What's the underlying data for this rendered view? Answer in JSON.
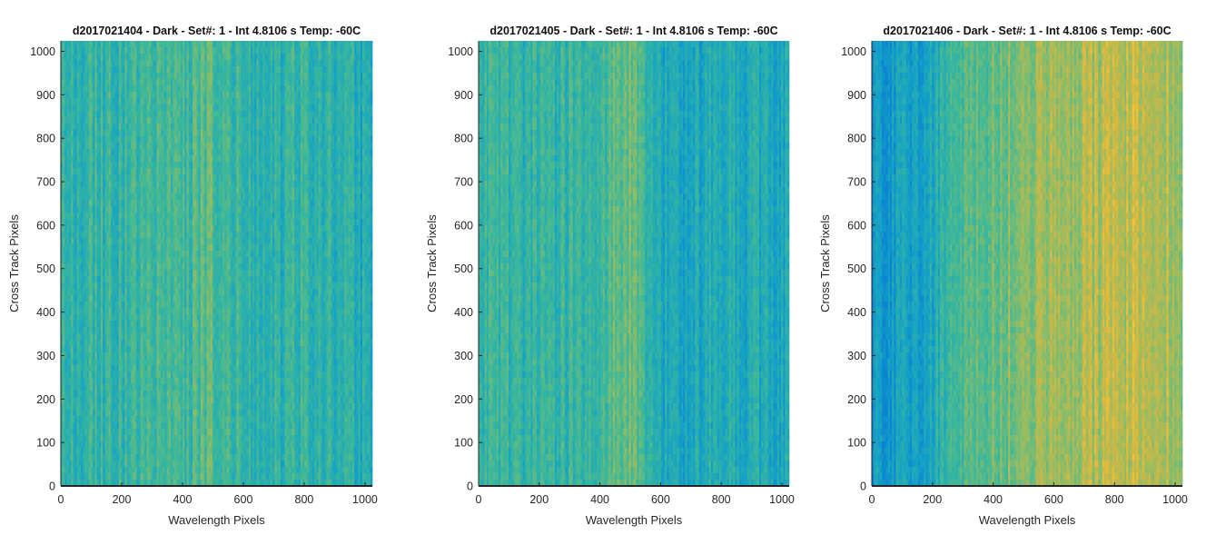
{
  "chart_data": [
    {
      "type": "heatmap",
      "title": "d2017021404 - Dark - Set#: 1 - Int 4.8106 s Temp: -60C",
      "xlabel": "Wavelength Pixels",
      "ylabel": "Cross Track Pixels",
      "xlim": [
        0,
        1024
      ],
      "ylim": [
        0,
        1024
      ],
      "xticks": [
        0,
        200,
        400,
        600,
        800,
        1000
      ],
      "yticks": [
        0,
        100,
        200,
        300,
        400,
        500,
        600,
        700,
        800,
        900,
        1000
      ],
      "colormap": "parula",
      "value_range": [
        0,
        1
      ],
      "column_profile": [
        {
          "x": 0,
          "v": 0.5
        },
        {
          "x": 100,
          "v": 0.52
        },
        {
          "x": 200,
          "v": 0.5
        },
        {
          "x": 300,
          "v": 0.53
        },
        {
          "x": 400,
          "v": 0.54
        },
        {
          "x": 500,
          "v": 0.6
        },
        {
          "x": 550,
          "v": 0.55
        },
        {
          "x": 650,
          "v": 0.48
        },
        {
          "x": 750,
          "v": 0.5
        },
        {
          "x": 850,
          "v": 0.51
        },
        {
          "x": 950,
          "v": 0.47
        },
        {
          "x": 1024,
          "v": 0.45
        }
      ]
    },
    {
      "type": "heatmap",
      "title": "d2017021405 - Dark - Set#: 1 - Int 4.8106 s Temp: -60C",
      "xlabel": "Wavelength Pixels",
      "ylabel": "Cross Track Pixels",
      "xlim": [
        0,
        1024
      ],
      "ylim": [
        0,
        1024
      ],
      "xticks": [
        0,
        200,
        400,
        600,
        800,
        1000
      ],
      "yticks": [
        0,
        100,
        200,
        300,
        400,
        500,
        600,
        700,
        800,
        900,
        1000
      ],
      "colormap": "parula",
      "value_range": [
        0,
        1
      ],
      "column_profile": [
        {
          "x": 0,
          "v": 0.55
        },
        {
          "x": 100,
          "v": 0.52
        },
        {
          "x": 200,
          "v": 0.5
        },
        {
          "x": 300,
          "v": 0.52
        },
        {
          "x": 400,
          "v": 0.56
        },
        {
          "x": 500,
          "v": 0.63
        },
        {
          "x": 560,
          "v": 0.5
        },
        {
          "x": 650,
          "v": 0.42
        },
        {
          "x": 750,
          "v": 0.44
        },
        {
          "x": 850,
          "v": 0.46
        },
        {
          "x": 950,
          "v": 0.44
        },
        {
          "x": 1024,
          "v": 0.45
        }
      ]
    },
    {
      "type": "heatmap",
      "title": "d2017021406 - Dark - Set#: 1 - Int 4.8106 s Temp: -60C",
      "xlabel": "Wavelength Pixels",
      "ylabel": "Cross Track Pixels",
      "xlim": [
        0,
        1024
      ],
      "ylim": [
        0,
        1024
      ],
      "xticks": [
        0,
        200,
        400,
        600,
        800,
        1000
      ],
      "yticks": [
        0,
        100,
        200,
        300,
        400,
        500,
        600,
        700,
        800,
        900,
        1000
      ],
      "colormap": "parula",
      "value_range": [
        0,
        1
      ],
      "column_profile": [
        {
          "x": 0,
          "v": 0.36
        },
        {
          "x": 100,
          "v": 0.4
        },
        {
          "x": 200,
          "v": 0.45
        },
        {
          "x": 300,
          "v": 0.58
        },
        {
          "x": 400,
          "v": 0.64
        },
        {
          "x": 500,
          "v": 0.66
        },
        {
          "x": 600,
          "v": 0.7
        },
        {
          "x": 700,
          "v": 0.72
        },
        {
          "x": 800,
          "v": 0.75
        },
        {
          "x": 900,
          "v": 0.78
        },
        {
          "x": 1024,
          "v": 0.72
        }
      ]
    }
  ]
}
